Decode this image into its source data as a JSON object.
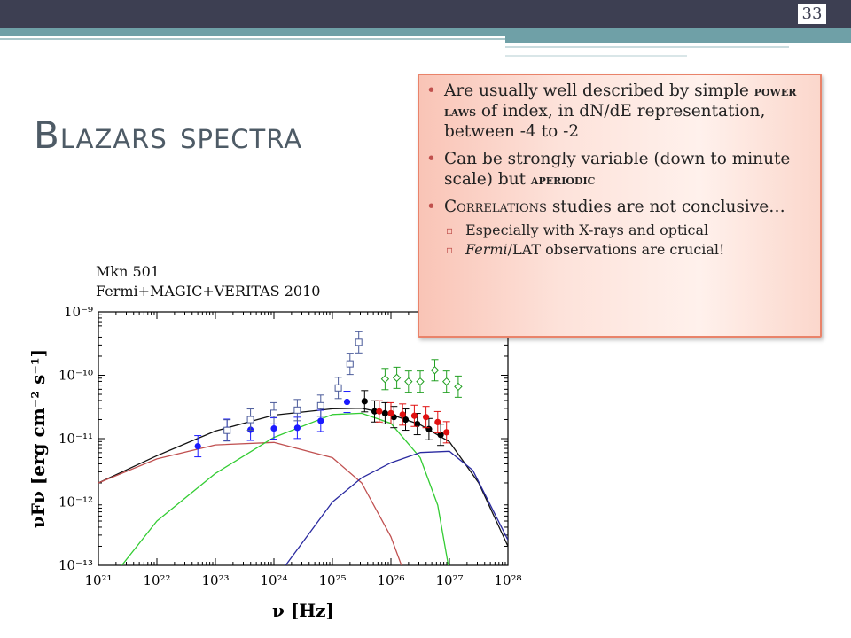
{
  "slide": {
    "number": "33",
    "title": "Blazars spectra"
  },
  "caption": {
    "source": "Mkn 501",
    "reference": "Fermi+MAGIC+VERITAS 2010"
  },
  "callout": {
    "b1_text_1": "Are usually well described by simple ",
    "b1_emph": "power laws",
    "b1_text_2": " of index, in dN/dE representation, between -4 to -2",
    "b2_text_1": "Can be strongly variable (down to minute scale) but ",
    "b2_emph": "aperiodic",
    "b3_emph": "Correlations",
    "b3_text_2": " studies are not conclusive…",
    "sub1": "Especially with X-rays and optical",
    "sub2_italic": "Fermi",
    "sub2_text": "/LAT observations are crucial!"
  },
  "colors": {
    "topbar": "#3d3f52",
    "teal": "#6fa0a7",
    "callout_border": "#e9836a",
    "bullet": "#c0504d"
  },
  "chart_data": {
    "type": "scatter",
    "xlabel": "ν [Hz]",
    "ylabel": "νFν [erg cm⁻² s⁻¹]",
    "scale": "log-log",
    "xlim": [
      1e+21,
      1e+28
    ],
    "ylim": [
      1e-13,
      1e-09
    ],
    "x_ticks": [
      "10²¹",
      "10²²",
      "10²³",
      "10²⁴",
      "10²⁵",
      "10²⁶",
      "10²⁷",
      "10²⁸"
    ],
    "y_ticks": [
      "10⁻⁹",
      "10⁻¹⁰",
      "10⁻¹¹",
      "10⁻¹²",
      "10⁻¹³"
    ],
    "series": [
      {
        "color": "#1a1aff",
        "marker": "circle-filled",
        "points": [
          [
            22.7,
            -11.12
          ],
          [
            23.2,
            -10.86
          ],
          [
            23.6,
            -10.86
          ],
          [
            24.0,
            -10.84
          ],
          [
            24.4,
            -10.83
          ],
          [
            24.8,
            -10.72
          ],
          [
            25.25,
            -10.42
          ]
        ]
      },
      {
        "color": "#4a5a9a",
        "marker": "square-open",
        "points": [
          [
            23.2,
            -10.87
          ],
          [
            23.6,
            -10.7
          ],
          [
            24.0,
            -10.6
          ],
          [
            24.4,
            -10.55
          ],
          [
            24.8,
            -10.48
          ],
          [
            25.1,
            -10.2
          ],
          [
            25.3,
            -9.82
          ],
          [
            25.45,
            -9.48
          ]
        ]
      },
      {
        "color": "#000000",
        "marker": "circle-filled",
        "points": [
          [
            25.55,
            -10.41
          ],
          [
            25.72,
            -10.57
          ],
          [
            25.9,
            -10.6
          ],
          [
            26.05,
            -10.66
          ],
          [
            26.25,
            -10.7
          ],
          [
            26.45,
            -10.77
          ],
          [
            26.65,
            -10.85
          ],
          [
            26.85,
            -10.94
          ]
        ]
      },
      {
        "color": "#e01010",
        "marker": "circle-filled",
        "points": [
          [
            25.8,
            -10.57
          ],
          [
            26.0,
            -10.6
          ],
          [
            26.2,
            -10.62
          ],
          [
            26.4,
            -10.64
          ],
          [
            26.6,
            -10.66
          ],
          [
            26.8,
            -10.74
          ],
          [
            26.95,
            -10.9
          ]
        ]
      },
      {
        "color": "#22a022",
        "marker": "diamond-open",
        "points": [
          [
            25.9,
            -10.06
          ],
          [
            26.1,
            -10.04
          ],
          [
            26.3,
            -10.1
          ],
          [
            26.5,
            -10.1
          ],
          [
            26.75,
            -9.92
          ],
          [
            26.95,
            -10.1
          ],
          [
            27.15,
            -10.18
          ]
        ]
      }
    ],
    "curves": [
      {
        "color": "#111111",
        "points": [
          [
            21,
            -11.7
          ],
          [
            22,
            -11.27
          ],
          [
            23,
            -10.88
          ],
          [
            24,
            -10.63
          ],
          [
            25,
            -10.53
          ],
          [
            25.5,
            -10.52
          ],
          [
            26,
            -10.62
          ],
          [
            26.5,
            -10.78
          ],
          [
            27,
            -11.05
          ],
          [
            27.5,
            -11.7
          ],
          [
            28,
            -12.7
          ]
        ]
      },
      {
        "color": "#c05050",
        "points": [
          [
            21,
            -11.7
          ],
          [
            22,
            -11.32
          ],
          [
            23,
            -11.1
          ],
          [
            24,
            -11.06
          ],
          [
            25,
            -11.3
          ],
          [
            25.5,
            -11.7
          ],
          [
            26,
            -12.55
          ],
          [
            26.3,
            -13.3
          ]
        ]
      },
      {
        "color": "#33cc33",
        "points": [
          [
            21.4,
            -13.0
          ],
          [
            22,
            -12.3
          ],
          [
            23,
            -11.55
          ],
          [
            24,
            -10.98
          ],
          [
            25,
            -10.62
          ],
          [
            25.5,
            -10.6
          ],
          [
            26,
            -10.76
          ],
          [
            26.5,
            -11.3
          ],
          [
            26.8,
            -12.05
          ],
          [
            27.0,
            -13.1
          ]
        ]
      },
      {
        "color": "#2a2aa0",
        "points": [
          [
            24.2,
            -13.0
          ],
          [
            25,
            -12.0
          ],
          [
            25.5,
            -11.62
          ],
          [
            26,
            -11.38
          ],
          [
            26.5,
            -11.22
          ],
          [
            27,
            -11.2
          ],
          [
            27.4,
            -11.5
          ],
          [
            27.7,
            -12.05
          ],
          [
            28,
            -12.6
          ]
        ]
      }
    ]
  }
}
